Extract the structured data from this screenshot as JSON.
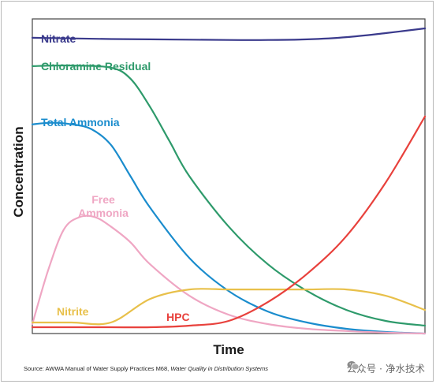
{
  "chart_data": {
    "type": "line",
    "xlabel": "Time",
    "ylabel": "Concentration",
    "xlim": [
      0,
      100
    ],
    "ylim": [
      0,
      100
    ],
    "axis_ticks": false,
    "grid": false,
    "legend": "inline labels",
    "series": [
      {
        "name": "Nitrate",
        "color": "#3a3a8c",
        "x": [
          0,
          10,
          20,
          30,
          40,
          50,
          60,
          70,
          80,
          90,
          100
        ],
        "y": [
          94.0,
          93.8,
          93.6,
          93.5,
          93.4,
          93.3,
          93.3,
          93.5,
          94.2,
          95.5,
          97.0
        ]
      },
      {
        "name": "Chloramine Residual",
        "color": "#2e9a6b",
        "x": [
          0,
          10,
          20,
          25,
          30,
          35,
          40,
          50,
          60,
          70,
          80,
          90,
          100
        ],
        "y": [
          85.0,
          85.2,
          84.5,
          81.0,
          72.0,
          61.0,
          50.0,
          34.0,
          22.0,
          13.5,
          7.5,
          4.0,
          2.5
        ]
      },
      {
        "name": "Total Ammonia",
        "color": "#1a8ccd",
        "x": [
          0,
          5,
          10,
          15,
          20,
          25,
          30,
          40,
          50,
          60,
          70,
          80,
          90,
          100
        ],
        "y": [
          66.5,
          67.0,
          66.5,
          65.0,
          60.0,
          50.0,
          40.0,
          24.0,
          13.5,
          7.0,
          3.5,
          1.5,
          0.5,
          0.0
        ]
      },
      {
        "name": "Free Ammonia",
        "color": "#efa6c3",
        "x": [
          0,
          4,
          8,
          12,
          16,
          20,
          25,
          30,
          40,
          50,
          60,
          70,
          80,
          90,
          100
        ],
        "y": [
          3.0,
          20.0,
          33.0,
          37.0,
          37.0,
          34.0,
          29.0,
          22.0,
          12.0,
          6.0,
          3.0,
          1.5,
          0.8,
          0.3,
          0.0
        ]
      },
      {
        "name": "Nitrite",
        "color": "#e8c04a",
        "x": [
          0,
          10,
          20,
          30,
          40,
          50,
          60,
          70,
          80,
          90,
          100
        ],
        "y": [
          3.5,
          3.5,
          3.5,
          11.0,
          14.0,
          14.0,
          14.0,
          14.0,
          14.0,
          12.0,
          7.5
        ]
      },
      {
        "name": "HPC",
        "color": "#e8413c",
        "x": [
          0,
          10,
          20,
          30,
          40,
          50,
          60,
          70,
          80,
          90,
          100
        ],
        "y": [
          2.0,
          2.0,
          2.0,
          2.0,
          2.5,
          4.0,
          10.0,
          19.0,
          31.0,
          48.0,
          69.0
        ]
      }
    ],
    "annotations": [
      {
        "text": "Nitrate",
        "series": "Nitrate"
      },
      {
        "text": "Chloramine Residual",
        "series": "Chloramine Residual"
      },
      {
        "text": "Total Ammonia",
        "series": "Total Ammonia"
      },
      {
        "text": "Free",
        "series": "Free Ammonia"
      },
      {
        "text": "Ammonia",
        "series": "Free Ammonia"
      },
      {
        "text": "Nitrite",
        "series": "Nitrite"
      },
      {
        "text": "HPC",
        "series": "HPC"
      }
    ]
  },
  "source": {
    "prefix": "Source: AWWA Manual of Water Supply Practices M68, ",
    "italic": "Water Quality in Distribution Systems"
  },
  "watermark": {
    "text": "公众号 · 净水技术",
    "icon": "wechat-icon"
  }
}
